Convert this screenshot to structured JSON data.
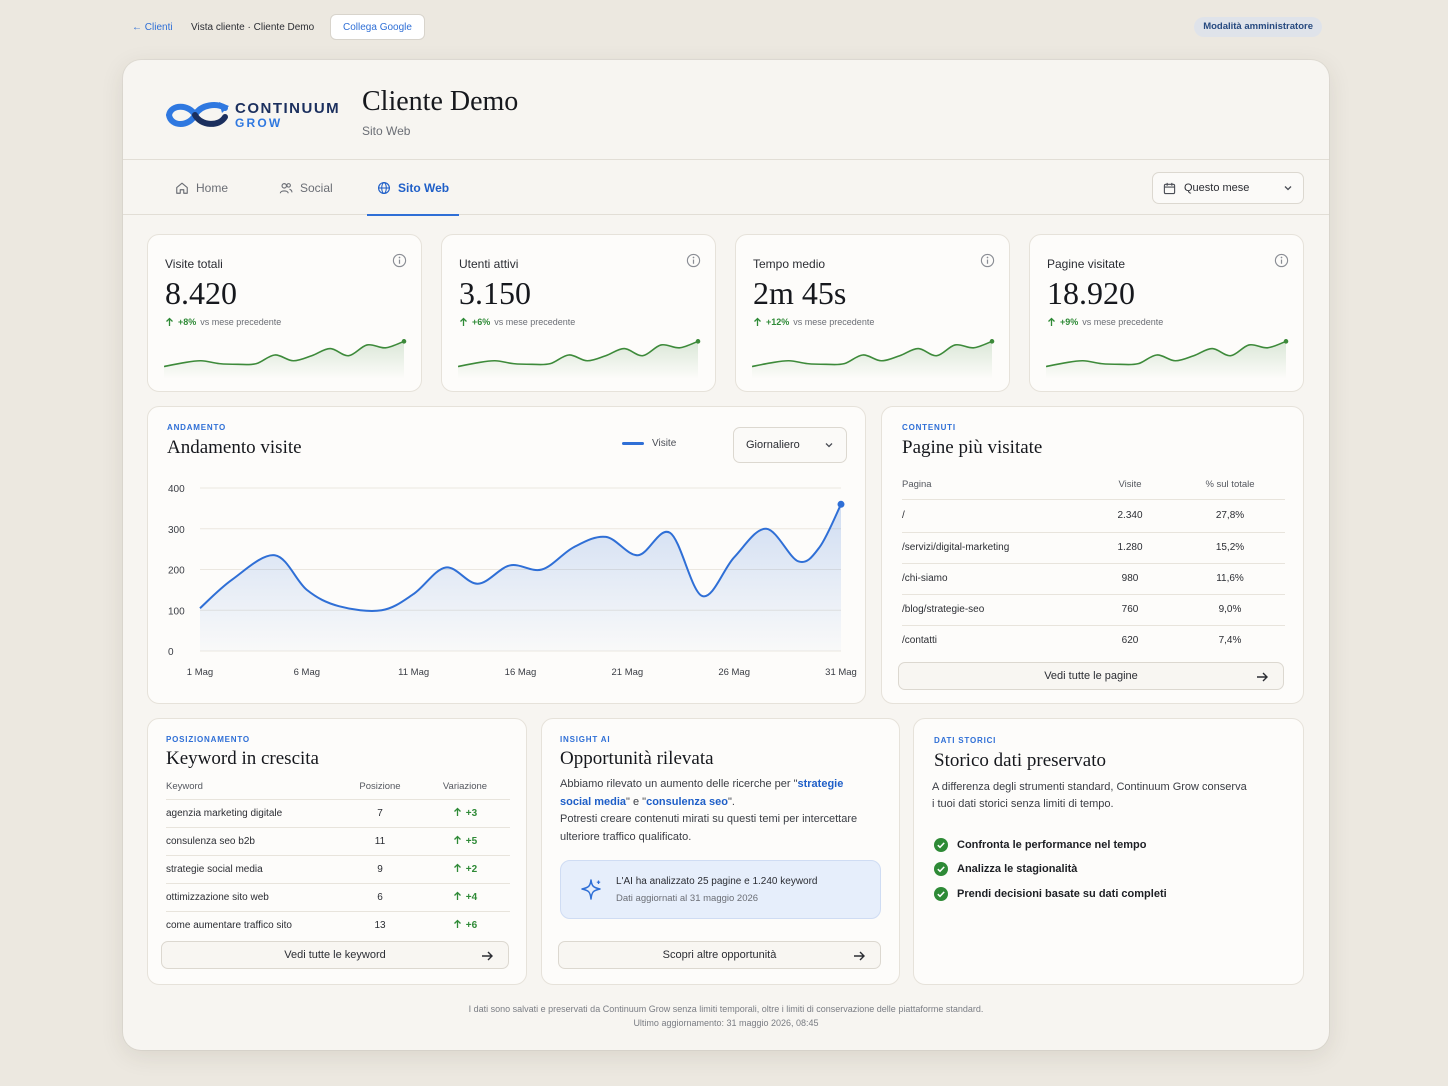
{
  "topbar": {
    "back_label": "← Clienti",
    "breadcrumb": "Vista cliente · Cliente Demo",
    "google_button": "Collega Google",
    "admin_badge": "Modalità amministratore"
  },
  "header": {
    "logo_line1": "CONTINUUM",
    "logo_line2": "GROW",
    "client_name": "Cliente Demo",
    "client_section": "Sito Web"
  },
  "nav": {
    "tabs": [
      {
        "label": "Home",
        "icon": "home-icon"
      },
      {
        "label": "Social",
        "icon": "users-icon"
      },
      {
        "label": "Sito Web",
        "icon": "globe-icon",
        "active": true
      }
    ],
    "period": "Questo mese"
  },
  "kpis": [
    {
      "label": "Visite totali",
      "value": "8.420",
      "delta": "+8%",
      "delta_text": "vs mese precedente"
    },
    {
      "label": "Utenti attivi",
      "value": "3.150",
      "delta": "+6%",
      "delta_text": "vs mese precedente"
    },
    {
      "label": "Tempo medio",
      "value": "2m 45s",
      "delta": "+12%",
      "delta_text": "vs mese precedente"
    },
    {
      "label": "Pagine visitate",
      "value": "18.920",
      "delta": "+9%",
      "delta_text": "vs mese precedente"
    }
  ],
  "trend": {
    "eyebrow": "ANDAMENTO",
    "title": "Andamento visite",
    "legend": "Visite",
    "granularity": "Giornaliero"
  },
  "chart_data": {
    "type": "area",
    "series": [
      {
        "name": "Visite",
        "values": [
          105,
          175,
          235,
          150,
          110,
          100,
          140,
          205,
          165,
          210,
          200,
          255,
          280,
          235,
          290,
          135,
          230,
          300,
          220,
          255,
          360
        ]
      }
    ],
    "x": [
      1,
      2.5,
      4.5,
      6,
      7.5,
      9.5,
      11,
      12.5,
      14,
      15.5,
      17,
      18.5,
      20,
      21.5,
      23,
      24.5,
      26,
      27.5,
      29,
      30,
      31
    ],
    "x_tick_labels": [
      "1 Mag",
      "6 Mag",
      "11 Mag",
      "16 Mag",
      "21 Mag",
      "26 Mag",
      "31 Mag"
    ],
    "x_ticks": [
      1,
      6,
      11,
      16,
      21,
      26,
      31
    ],
    "y_ticks": [
      0,
      100,
      200,
      300,
      400
    ],
    "ylim": [
      0,
      400
    ],
    "grid": true,
    "color": "#2f6fd6"
  },
  "top_pages": {
    "eyebrow": "CONTENUTI",
    "title": "Pagine più visitate",
    "headers": [
      "Pagina",
      "Visite",
      "% sul totale"
    ],
    "rows": [
      [
        "/",
        "2.340",
        "27,8%"
      ],
      [
        "/servizi/digital-marketing",
        "1.280",
        "15,2%"
      ],
      [
        "/chi-siamo",
        "980",
        "11,6%"
      ],
      [
        "/blog/strategie-seo",
        "760",
        "9,0%"
      ],
      [
        "/contatti",
        "620",
        "7,4%"
      ]
    ],
    "button": "Vedi tutte le pagine"
  },
  "keywords": {
    "eyebrow": "POSIZIONAMENTO",
    "title": "Keyword in crescita",
    "headers": [
      "Keyword",
      "Posizione",
      "Variazione"
    ],
    "rows": [
      [
        "agenzia marketing digitale",
        "7",
        "+3"
      ],
      [
        "consulenza seo b2b",
        "11",
        "+5"
      ],
      [
        "strategie social media",
        "9",
        "+2"
      ],
      [
        "ottimizzazione sito web",
        "6",
        "+4"
      ],
      [
        "come aumentare traffico sito",
        "13",
        "+6"
      ]
    ],
    "button": "Vedi tutte le keyword"
  },
  "insight": {
    "eyebrow": "INSIGHT AI",
    "title": "Opportunità rilevata",
    "text_a": "Abbiamo rilevato un aumento delle ricerche per \"",
    "kw1": "strategie social media",
    "text_b": "\" e \"",
    "kw2": "consulenza seo",
    "text_c": "\".",
    "text_d": "Potresti creare contenuti mirati su questi temi per intercettare ulteriore traffico qualificato.",
    "ai_line1": "L'AI ha analizzato 25 pagine e 1.240 keyword",
    "ai_line2": "Dati aggiornati al 31 maggio 2026",
    "button": "Scopri altre opportunità"
  },
  "history": {
    "eyebrow": "DATI STORICI",
    "title": "Storico dati preservato",
    "text": "A differenza degli strumenti standard, Continuum Grow conserva i tuoi dati storici senza limiti di tempo.",
    "checks": [
      "Confronta le performance nel tempo",
      "Analizza le stagionalità",
      "Prendi decisioni basate su dati completi"
    ]
  },
  "footer": {
    "line1": "I dati sono salvati e preservati da Continuum Grow senza limiti temporali, oltre i limiti di conservazione delle piattaforme standard.",
    "line2": "Ultimo aggiornamento: 31 maggio 2026, 08:45"
  },
  "colors": {
    "accent": "#2f6fd6",
    "positive": "#2e8a36",
    "spark": "#3d8a3a"
  }
}
